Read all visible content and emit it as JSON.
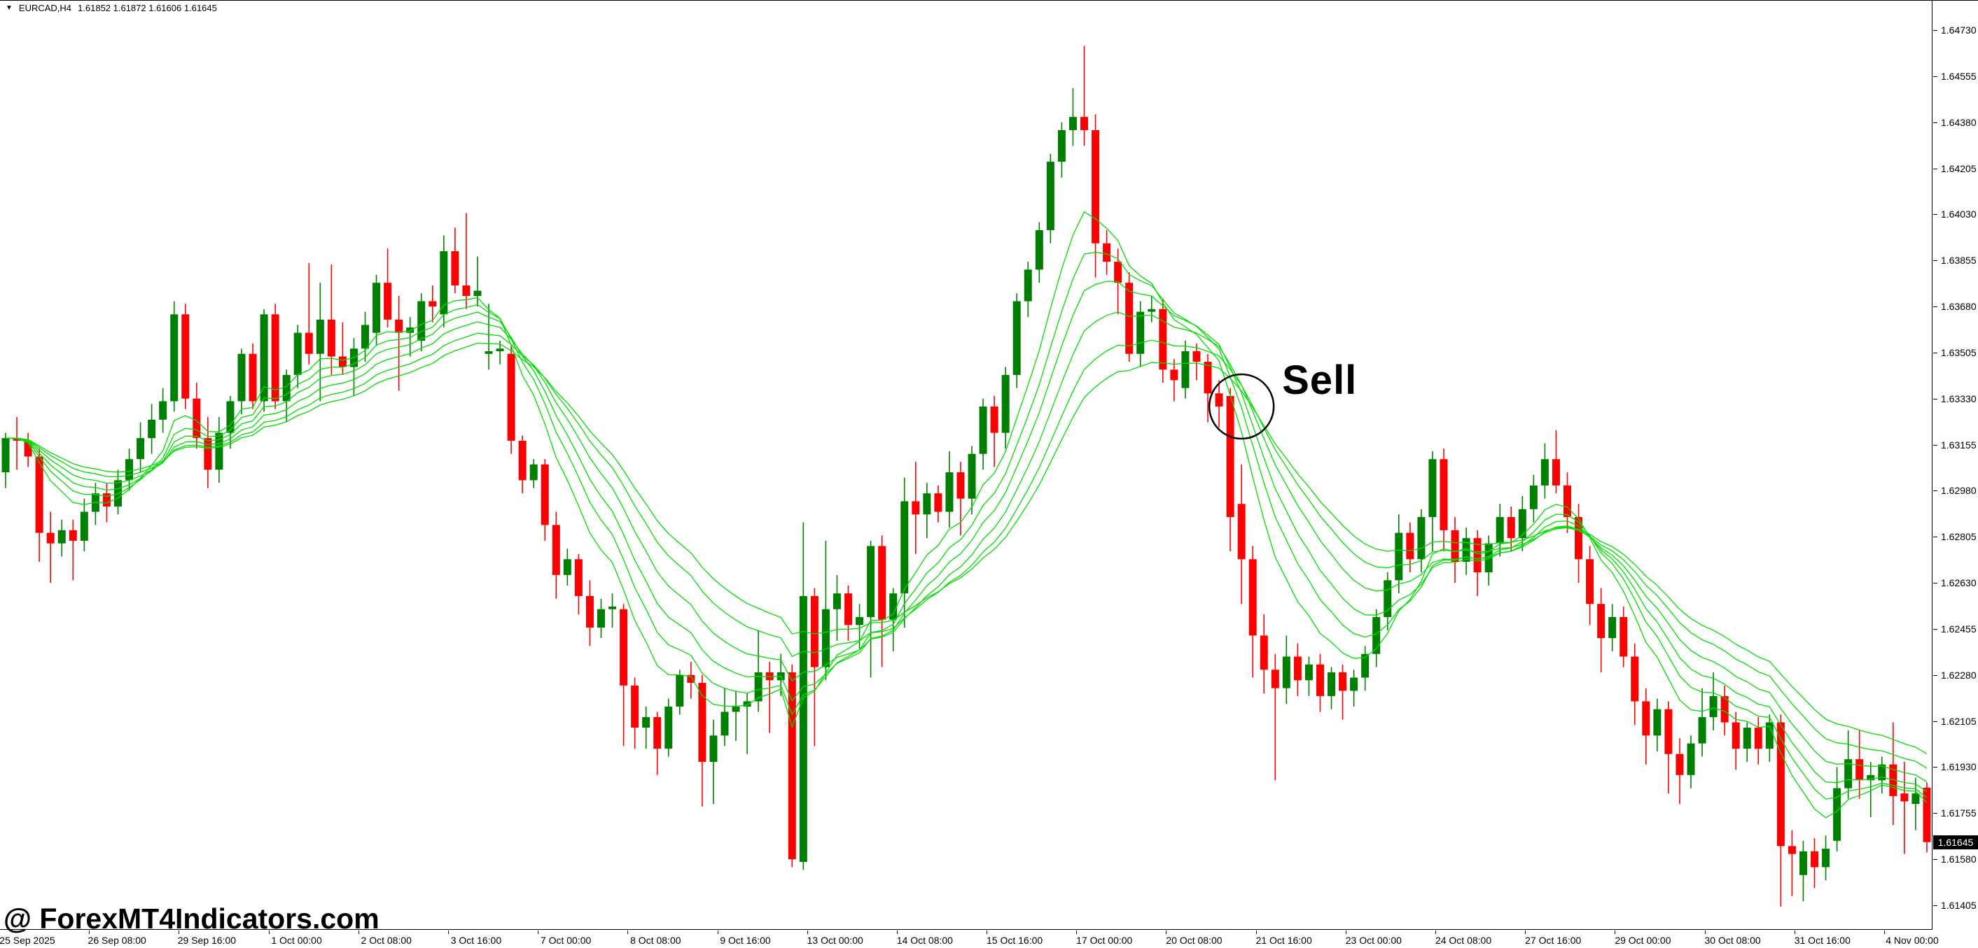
{
  "window": {
    "dropdown_triangle": "▼",
    "title_symbol": "EURCAD,H4",
    "title_ohlc": "1.61852 1.61872 1.61606 1.61645"
  },
  "watermark": {
    "text": "@ ForexMT4Indicators.com"
  },
  "chart_data": {
    "type": "candlestick",
    "symbol": "EURCAD",
    "timeframe": "H4",
    "legend_position": "none",
    "grid": false,
    "current_ohlc": {
      "open": "1.61852",
      "high": "1.61872",
      "low": "1.61606",
      "close": "1.61645"
    },
    "current_price_badge": "1.61645",
    "y_ticks": [
      "1.64730",
      "1.64555",
      "1.64380",
      "1.64205",
      "1.64030",
      "1.63855",
      "1.63680",
      "1.63505",
      "1.63330",
      "1.63155",
      "1.62980",
      "1.62805",
      "1.62630",
      "1.62455",
      "1.62280",
      "1.62105",
      "1.61930",
      "1.61755",
      "1.61580",
      "1.61405"
    ],
    "x_ticks": [
      "25 Sep 2025",
      "26 Sep 08:00",
      "29 Sep 16:00",
      "1 Oct 00:00",
      "2 Oct 08:00",
      "3 Oct 16:00",
      "7 Oct 00:00",
      "8 Oct 08:00",
      "9 Oct 16:00",
      "13 Oct 00:00",
      "14 Oct 08:00",
      "15 Oct 16:00",
      "17 Oct 00:00",
      "20 Oct 08:00",
      "21 Oct 16:00",
      "23 Oct 00:00",
      "24 Oct 08:00",
      "27 Oct 16:00",
      "29 Oct 00:00",
      "30 Oct 08:00",
      "31 Oct 16:00",
      "4 Nov 00:00"
    ],
    "annotation": {
      "label": "Sell",
      "candle_index": 110,
      "price": 1.633
    },
    "ribbon": {
      "kind": "ema-ribbon",
      "periods": [
        8,
        11,
        14,
        18,
        23,
        28
      ]
    },
    "colors": {
      "bull": "#008000",
      "bear": "#ff0000",
      "ribbon": "#00dd00",
      "axis_text": "#000000",
      "badge_bg": "#000000",
      "badge_text": "#ffffff",
      "annotation": "#000000",
      "background": "#ffffff"
    },
    "candles": [
      [
        1.6305,
        1.632,
        1.6299,
        1.6318
      ],
      [
        1.6318,
        1.6326,
        1.6306,
        1.6317
      ],
      [
        1.6317,
        1.632,
        1.6307,
        1.6311
      ],
      [
        1.6311,
        1.6314,
        1.6271,
        1.6282
      ],
      [
        1.6282,
        1.629,
        1.6263,
        1.6278
      ],
      [
        1.6278,
        1.6287,
        1.6273,
        1.6283
      ],
      [
        1.6283,
        1.6287,
        1.6264,
        1.6279
      ],
      [
        1.6279,
        1.6295,
        1.6275,
        1.629
      ],
      [
        1.629,
        1.6301,
        1.6285,
        1.6297
      ],
      [
        1.6297,
        1.6301,
        1.6286,
        1.6292
      ],
      [
        1.6292,
        1.6306,
        1.6289,
        1.6302
      ],
      [
        1.6302,
        1.6314,
        1.6298,
        1.631
      ],
      [
        1.631,
        1.6324,
        1.6305,
        1.6318
      ],
      [
        1.6318,
        1.6331,
        1.6312,
        1.6325
      ],
      [
        1.6325,
        1.6337,
        1.632,
        1.6332
      ],
      [
        1.6332,
        1.637,
        1.6328,
        1.6365
      ],
      [
        1.6365,
        1.6369,
        1.6329,
        1.6333
      ],
      [
        1.6333,
        1.6339,
        1.6314,
        1.6318
      ],
      [
        1.6318,
        1.6326,
        1.6299,
        1.6306
      ],
      [
        1.6306,
        1.6326,
        1.6301,
        1.632
      ],
      [
        1.632,
        1.6334,
        1.6314,
        1.6332
      ],
      [
        1.6332,
        1.6352,
        1.6327,
        1.635
      ],
      [
        1.635,
        1.6354,
        1.6329,
        1.6332
      ],
      [
        1.6332,
        1.6367,
        1.6328,
        1.6365
      ],
      [
        1.6365,
        1.6369,
        1.6329,
        1.6332
      ],
      [
        1.6332,
        1.6344,
        1.6324,
        1.6342
      ],
      [
        1.6342,
        1.6361,
        1.6337,
        1.6358
      ],
      [
        1.6358,
        1.63845,
        1.6346,
        1.635
      ],
      [
        1.635,
        1.6377,
        1.6332,
        1.6363
      ],
      [
        1.6363,
        1.6384,
        1.6342,
        1.6349
      ],
      [
        1.6349,
        1.6362,
        1.6342,
        1.6345
      ],
      [
        1.6345,
        1.6356,
        1.6334,
        1.6352
      ],
      [
        1.6352,
        1.6366,
        1.6347,
        1.6361
      ],
      [
        1.6358,
        1.638,
        1.6353,
        1.6377
      ],
      [
        1.6377,
        1.639,
        1.636,
        1.6363
      ],
      [
        1.6363,
        1.6372,
        1.6336,
        1.6358
      ],
      [
        1.6358,
        1.6364,
        1.6349,
        1.636
      ],
      [
        1.6355,
        1.6373,
        1.6351,
        1.637
      ],
      [
        1.637,
        1.6376,
        1.6362,
        1.6368
      ],
      [
        1.6365,
        1.6395,
        1.636,
        1.6389
      ],
      [
        1.6389,
        1.6398,
        1.6373,
        1.6376
      ],
      [
        1.6376,
        1.64035,
        1.6367,
        1.6372
      ],
      [
        1.6372,
        1.6387,
        1.6368,
        1.6374
      ],
      [
        1.635,
        1.6369,
        1.6344,
        1.6351
      ],
      [
        1.6351,
        1.6355,
        1.6346,
        1.6352
      ],
      [
        1.635,
        1.6353,
        1.6312,
        1.6317
      ],
      [
        1.6317,
        1.6319,
        1.6297,
        1.6302
      ],
      [
        1.6302,
        1.631,
        1.6299,
        1.6308
      ],
      [
        1.6308,
        1.631,
        1.6279,
        1.6285
      ],
      [
        1.6285,
        1.629,
        1.6257,
        1.6266
      ],
      [
        1.6266,
        1.6276,
        1.6262,
        1.6272
      ],
      [
        1.6272,
        1.6274,
        1.6251,
        1.6258
      ],
      [
        1.6258,
        1.6264,
        1.6239,
        1.6246
      ],
      [
        1.6246,
        1.6257,
        1.6242,
        1.6253
      ],
      [
        1.6253,
        1.6259,
        1.6246,
        1.6254
      ],
      [
        1.6253,
        1.6255,
        1.6201,
        1.6224
      ],
      [
        1.6224,
        1.6227,
        1.62,
        1.6208
      ],
      [
        1.6208,
        1.6216,
        1.62,
        1.6212
      ],
      [
        1.6212,
        1.6214,
        1.619,
        1.62
      ],
      [
        1.62,
        1.6219,
        1.6197,
        1.6216
      ],
      [
        1.6216,
        1.623,
        1.6213,
        1.6228
      ],
      [
        1.6228,
        1.6233,
        1.6219,
        1.6225
      ],
      [
        1.6225,
        1.6228,
        1.6178,
        1.6195
      ],
      [
        1.6195,
        1.6211,
        1.6179,
        1.6205
      ],
      [
        1.6205,
        1.6223,
        1.6201,
        1.6214
      ],
      [
        1.6214,
        1.6222,
        1.6203,
        1.6216
      ],
      [
        1.6216,
        1.6221,
        1.6198,
        1.6218
      ],
      [
        1.6218,
        1.6245,
        1.6214,
        1.6229
      ],
      [
        1.6229,
        1.6233,
        1.6206,
        1.6226
      ],
      [
        1.6226,
        1.6236,
        1.622,
        1.6229
      ],
      [
        1.6229,
        1.6232,
        1.6155,
        1.6158
      ],
      [
        1.6157,
        1.6286,
        1.6154,
        1.6258
      ],
      [
        1.6258,
        1.6261,
        1.6201,
        1.6231
      ],
      [
        1.6231,
        1.6279,
        1.6226,
        1.6253
      ],
      [
        1.6253,
        1.6266,
        1.6241,
        1.6259
      ],
      [
        1.6259,
        1.6262,
        1.6241,
        1.6247
      ],
      [
        1.6247,
        1.6255,
        1.6238,
        1.625
      ],
      [
        1.625,
        1.6279,
        1.6227,
        1.6277
      ],
      [
        1.6277,
        1.6281,
        1.6231,
        1.6249
      ],
      [
        1.6249,
        1.6261,
        1.6237,
        1.6259
      ],
      [
        1.6259,
        1.6303,
        1.6246,
        1.6294
      ],
      [
        1.6294,
        1.6309,
        1.6274,
        1.6289
      ],
      [
        1.6289,
        1.6301,
        1.628,
        1.6297
      ],
      [
        1.6297,
        1.63,
        1.6286,
        1.629
      ],
      [
        1.629,
        1.6313,
        1.6284,
        1.6305
      ],
      [
        1.6305,
        1.6309,
        1.6281,
        1.6295
      ],
      [
        1.6295,
        1.6315,
        1.6289,
        1.6312
      ],
      [
        1.6312,
        1.6333,
        1.6306,
        1.633
      ],
      [
        1.633,
        1.6334,
        1.6307,
        1.632
      ],
      [
        1.632,
        1.6345,
        1.6314,
        1.6342
      ],
      [
        1.6342,
        1.6373,
        1.6337,
        1.637
      ],
      [
        1.637,
        1.6385,
        1.6364,
        1.6382
      ],
      [
        1.6382,
        1.64,
        1.6377,
        1.6397
      ],
      [
        1.6397,
        1.6426,
        1.6392,
        1.6423
      ],
      [
        1.6423,
        1.6438,
        1.6417,
        1.6435
      ],
      [
        1.6435,
        1.6451,
        1.6429,
        1.644
      ],
      [
        1.644,
        1.6467,
        1.6429,
        1.6435
      ],
      [
        1.6435,
        1.6441,
        1.6379,
        1.6392
      ],
      [
        1.6392,
        1.6397,
        1.638,
        1.6385
      ],
      [
        1.6385,
        1.639,
        1.6365,
        1.6377
      ],
      [
        1.6377,
        1.6381,
        1.6347,
        1.635
      ],
      [
        1.635,
        1.637,
        1.6345,
        1.6366
      ],
      [
        1.6366,
        1.6372,
        1.6362,
        1.6367
      ],
      [
        1.6367,
        1.6371,
        1.6339,
        1.6344
      ],
      [
        1.6344,
        1.6348,
        1.6332,
        1.634
      ],
      [
        1.6337,
        1.6355,
        1.6333,
        1.6351
      ],
      [
        1.6351,
        1.6354,
        1.634,
        1.6347
      ],
      [
        1.6347,
        1.635,
        1.6324,
        1.6335
      ],
      [
        1.6335,
        1.634,
        1.6322,
        1.633
      ],
      [
        1.6334,
        1.6337,
        1.6275,
        1.6288
      ],
      [
        1.6293,
        1.6308,
        1.6255,
        1.6272
      ],
      [
        1.6272,
        1.6277,
        1.6227,
        1.6243
      ],
      [
        1.6243,
        1.6251,
        1.6221,
        1.623
      ],
      [
        1.623,
        1.6236,
        1.6188,
        1.6223
      ],
      [
        1.6223,
        1.6243,
        1.6217,
        1.6235
      ],
      [
        1.6235,
        1.624,
        1.622,
        1.6226
      ],
      [
        1.6226,
        1.6235,
        1.622,
        1.6232
      ],
      [
        1.6232,
        1.6236,
        1.6214,
        1.622
      ],
      [
        1.622,
        1.6231,
        1.6215,
        1.6229
      ],
      [
        1.6229,
        1.6232,
        1.6211,
        1.6222
      ],
      [
        1.6222,
        1.623,
        1.6216,
        1.6227
      ],
      [
        1.6227,
        1.6239,
        1.6222,
        1.6236
      ],
      [
        1.6236,
        1.6253,
        1.6231,
        1.625
      ],
      [
        1.625,
        1.6267,
        1.6245,
        1.6264
      ],
      [
        1.6264,
        1.6289,
        1.6259,
        1.6282
      ],
      [
        1.6282,
        1.6286,
        1.6267,
        1.6272
      ],
      [
        1.6272,
        1.6291,
        1.6267,
        1.6288
      ],
      [
        1.6288,
        1.6313,
        1.6275,
        1.631
      ],
      [
        1.631,
        1.6314,
        1.6275,
        1.6283
      ],
      [
        1.6283,
        1.6288,
        1.6263,
        1.6271
      ],
      [
        1.6271,
        1.6284,
        1.6266,
        1.628
      ],
      [
        1.628,
        1.6283,
        1.6258,
        1.6267
      ],
      [
        1.6267,
        1.6281,
        1.6262,
        1.6278
      ],
      [
        1.6278,
        1.6293,
        1.6273,
        1.6288
      ],
      [
        1.6288,
        1.6292,
        1.6275,
        1.628
      ],
      [
        1.628,
        1.6296,
        1.6275,
        1.6291
      ],
      [
        1.6291,
        1.6304,
        1.6286,
        1.63
      ],
      [
        1.63,
        1.6316,
        1.6295,
        1.631
      ],
      [
        1.631,
        1.6321,
        1.6297,
        1.63
      ],
      [
        1.63,
        1.6305,
        1.6282,
        1.6288
      ],
      [
        1.6288,
        1.6293,
        1.6263,
        1.6272
      ],
      [
        1.6272,
        1.6277,
        1.6247,
        1.6255
      ],
      [
        1.6255,
        1.6261,
        1.6229,
        1.6242
      ],
      [
        1.6242,
        1.6255,
        1.6237,
        1.625
      ],
      [
        1.625,
        1.6254,
        1.6231,
        1.6235
      ],
      [
        1.6235,
        1.624,
        1.6209,
        1.6218
      ],
      [
        1.6218,
        1.6223,
        1.6194,
        1.6205
      ],
      [
        1.6205,
        1.6219,
        1.6199,
        1.6215
      ],
      [
        1.6215,
        1.6218,
        1.6183,
        1.6198
      ],
      [
        1.6198,
        1.6204,
        1.6179,
        1.619
      ],
      [
        1.619,
        1.6205,
        1.6185,
        1.6202
      ],
      [
        1.6202,
        1.6223,
        1.6197,
        1.6212
      ],
      [
        1.6212,
        1.6229,
        1.6207,
        1.622
      ],
      [
        1.622,
        1.6224,
        1.6205,
        1.621
      ],
      [
        1.621,
        1.6214,
        1.6192,
        1.62
      ],
      [
        1.62,
        1.621,
        1.6195,
        1.6208
      ],
      [
        1.6208,
        1.6212,
        1.6194,
        1.62
      ],
      [
        1.62,
        1.6213,
        1.6195,
        1.621
      ],
      [
        1.621,
        1.6213,
        1.614,
        1.6163
      ],
      [
        1.6163,
        1.6169,
        1.6144,
        1.616
      ],
      [
        1.6152,
        1.6165,
        1.6142,
        1.6161
      ],
      [
        1.6161,
        1.6166,
        1.6147,
        1.6155
      ],
      [
        1.6155,
        1.6167,
        1.615,
        1.6162
      ],
      [
        1.6165,
        1.6193,
        1.6161,
        1.6185
      ],
      [
        1.6185,
        1.6207,
        1.6181,
        1.6196
      ],
      [
        1.6196,
        1.6207,
        1.6181,
        1.6188
      ],
      [
        1.6188,
        1.6195,
        1.6174,
        1.619
      ],
      [
        1.6188,
        1.6197,
        1.6183,
        1.6194
      ],
      [
        1.6194,
        1.621,
        1.6171,
        1.6182
      ],
      [
        1.6183,
        1.6195,
        1.616,
        1.618
      ],
      [
        1.6179,
        1.6189,
        1.6169,
        1.6183
      ],
      [
        1.61852,
        1.61872,
        1.61606,
        1.61645
      ]
    ]
  }
}
